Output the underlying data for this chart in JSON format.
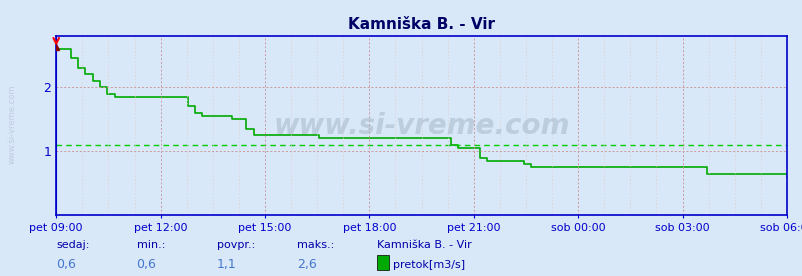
{
  "title": "Kamniška B. - Vir",
  "background_color": "#d8e8f8",
  "plot_bg_color": "#d8e8f8",
  "line_color": "#00aa00",
  "avg_line_color": "#00cc00",
  "axis_color": "#0000cc",
  "grid_color_major": "#cc9999",
  "grid_color_minor": "#ddcccc",
  "ylabel_color": "#0000cc",
  "title_color": "#000066",
  "ylim": [
    0,
    2.8
  ],
  "yticks": [
    1,
    2
  ],
  "avg_value": 1.1,
  "watermark": "www.si-vreme.com",
  "x_labels": [
    "pet 09:00",
    "pet 12:00",
    "pet 15:00",
    "pet 18:00",
    "pet 21:00",
    "sob 00:00",
    "sob 03:00",
    "sob 06:00"
  ],
  "footer_labels": [
    "sedaj:",
    "min.:",
    "povpr.:",
    "maks.:"
  ],
  "footer_values": [
    "0,6",
    "0,6",
    "1,1",
    "2,6"
  ],
  "legend_label": "pretok[m3/s]",
  "legend_series": "Kamniška B. - Vir",
  "data_x": [
    0,
    1,
    2,
    3,
    4,
    5,
    6,
    7,
    8,
    9,
    10,
    11,
    12,
    13,
    14,
    15,
    16,
    17,
    18,
    19,
    20,
    21,
    22,
    23,
    24,
    25,
    26,
    27,
    28,
    29,
    30,
    31,
    32,
    33,
    34,
    35,
    36,
    37,
    38,
    39,
    40,
    41,
    42,
    43,
    44,
    45,
    46,
    47,
    48,
    49,
    50,
    51,
    52,
    53,
    54,
    55,
    56,
    57,
    58,
    59,
    60,
    61,
    62,
    63,
    64,
    65,
    66,
    67,
    68,
    69,
    70,
    71,
    72,
    73,
    74,
    75,
    76,
    77,
    78,
    79,
    80,
    81,
    82,
    83,
    84,
    85,
    86,
    87,
    88,
    89,
    90,
    91,
    92,
    93,
    94,
    95,
    96,
    97,
    98,
    99,
    100
  ],
  "data_y": [
    2.6,
    2.6,
    2.45,
    2.3,
    2.2,
    2.1,
    2.0,
    1.9,
    1.85,
    1.85,
    1.85,
    1.85,
    1.85,
    1.85,
    1.85,
    1.85,
    1.85,
    1.85,
    1.7,
    1.6,
    1.55,
    1.55,
    1.55,
    1.55,
    1.5,
    1.5,
    1.35,
    1.25,
    1.25,
    1.25,
    1.25,
    1.25,
    1.25,
    1.25,
    1.25,
    1.25,
    1.2,
    1.2,
    1.2,
    1.2,
    1.2,
    1.2,
    1.2,
    1.2,
    1.2,
    1.2,
    1.2,
    1.2,
    1.2,
    1.2,
    1.2,
    1.2,
    1.2,
    1.2,
    1.1,
    1.05,
    1.05,
    1.05,
    0.9,
    0.85,
    0.85,
    0.85,
    0.85,
    0.85,
    0.8,
    0.75,
    0.75,
    0.75,
    0.75,
    0.75,
    0.75,
    0.75,
    0.75,
    0.75,
    0.75,
    0.75,
    0.75,
    0.75,
    0.75,
    0.75,
    0.75,
    0.75,
    0.75,
    0.75,
    0.75,
    0.75,
    0.75,
    0.75,
    0.75,
    0.65,
    0.65,
    0.65,
    0.65,
    0.65,
    0.65,
    0.65,
    0.65,
    0.65,
    0.65,
    0.65,
    0.6
  ]
}
